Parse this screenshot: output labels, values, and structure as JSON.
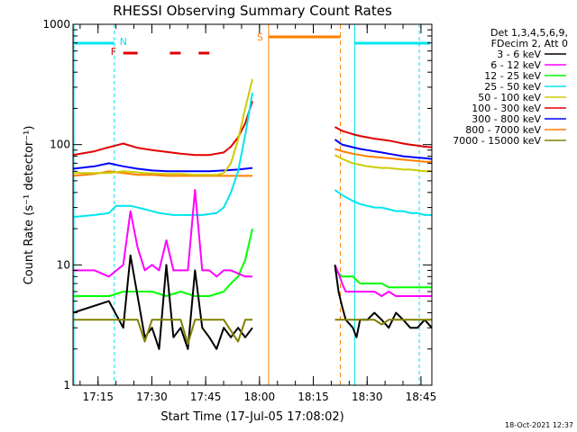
{
  "chart_data": {
    "type": "line",
    "title": "RHESSI Observing Summary Count Rates",
    "xlabel": "Start Time (17-Jul-05 17:08:02)",
    "ylabel": "Count Rate (s⁻¹ detector⁻¹)",
    "yscale": "log",
    "ylim": [
      1,
      1000
    ],
    "xlim_minutes": [
      0,
      100
    ],
    "x_ticks": [
      {
        "label": "17:15",
        "minute": 6.97
      },
      {
        "label": "17:30",
        "minute": 21.97
      },
      {
        "label": "17:45",
        "minute": 36.97
      },
      {
        "label": "18:00",
        "minute": 51.97
      },
      {
        "label": "18:15",
        "minute": 66.97
      },
      {
        "label": "18:30",
        "minute": 81.97
      },
      {
        "label": "18:45",
        "minute": 96.97
      }
    ],
    "y_ticks": [
      {
        "label": "1",
        "value": 1
      },
      {
        "label": "10",
        "value": 10
      },
      {
        "label": "100",
        "value": 100
      },
      {
        "label": "1000",
        "value": 1000
      }
    ],
    "legend_header": [
      "Det 1,3,4,5,6,9,",
      "FDecim 2, Att 0"
    ],
    "timestamp": "18-Oct-2021 12:37",
    "markers": {
      "N": {
        "label": "N",
        "color": "#00e5ee",
        "start": 0,
        "end": 11.5,
        "start2": 78.5,
        "end2": 100
      },
      "F": {
        "label": "F",
        "color": "#e00000"
      },
      "S": {
        "label": "S",
        "color": "#ff7f00",
        "start": 54.5,
        "end": 74.5
      }
    },
    "series": [
      {
        "name": "3 - 6 keV",
        "color": "#000000",
        "segments": [
          {
            "x": [
              0,
              10,
              14,
              16,
              20,
              22,
              24,
              26,
              28,
              30,
              32,
              34,
              36,
              38,
              40,
              42,
              44,
              46,
              48,
              50
            ],
            "y": [
              4,
              5,
              3,
              12,
              2.5,
              3,
              2,
              10,
              2.5,
              3,
              2,
              9,
              3,
              2.5,
              2,
              3,
              2.5,
              3,
              2.5,
              3
            ]
          },
          {
            "x": [
              73,
              74,
              75,
              76,
              78,
              79,
              80,
              82,
              84,
              86,
              88,
              90,
              92,
              94,
              96,
              98,
              100
            ],
            "y": [
              10,
              6,
              4.5,
              3.5,
              3,
              2.5,
              3.5,
              3.5,
              4,
              3.5,
              3,
              4,
              3.5,
              3,
              3,
              3.5,
              3
            ]
          }
        ]
      },
      {
        "name": "6 - 12 keV",
        "color": "#ff00ff",
        "segments": [
          {
            "x": [
              0,
              6,
              10,
              14,
              16,
              18,
              20,
              22,
              24,
              26,
              28,
              30,
              32,
              34,
              36,
              38,
              40,
              42,
              44,
              46,
              48,
              50
            ],
            "y": [
              9,
              9,
              8,
              10,
              28,
              14,
              9,
              10,
              9,
              16,
              9,
              9,
              9,
              42,
              9,
              9,
              8,
              9,
              9,
              8.5,
              8,
              8
            ]
          },
          {
            "x": [
              73,
              74,
              75,
              76,
              78,
              80,
              82,
              84,
              86,
              88,
              90,
              92,
              94,
              96,
              98,
              100
            ],
            "y": [
              10,
              8.5,
              7,
              6,
              6,
              6,
              6,
              6,
              5.5,
              6,
              5.5,
              5.5,
              5.5,
              5.5,
              5.5,
              5.5
            ]
          }
        ]
      },
      {
        "name": "12 - 25 keV",
        "color": "#00ff00",
        "segments": [
          {
            "x": [
              0,
              10,
              14,
              18,
              22,
              26,
              30,
              34,
              38,
              42,
              44,
              46,
              48,
              50
            ],
            "y": [
              5.5,
              5.5,
              6,
              6,
              6,
              5.5,
              6,
              5.5,
              5.5,
              6,
              7,
              8,
              11,
              20
            ]
          },
          {
            "x": [
              73,
              75,
              78,
              80,
              82,
              84,
              86,
              88,
              90,
              92,
              94,
              96,
              98,
              100
            ],
            "y": [
              9,
              8,
              8,
              7,
              7,
              7,
              7,
              6.5,
              6.5,
              6.5,
              6.5,
              6.5,
              6.5,
              6.5
            ]
          }
        ]
      },
      {
        "name": "25 - 50 keV",
        "color": "#00e5ee",
        "segments": [
          {
            "x": [
              0,
              6,
              10,
              12,
              16,
              20,
              24,
              28,
              32,
              36,
              40,
              42,
              44,
              46,
              48,
              50
            ],
            "y": [
              25,
              26,
              27,
              31,
              31,
              29,
              27,
              26,
              26,
              26,
              27,
              30,
              40,
              60,
              120,
              270
            ]
          },
          {
            "x": [
              73,
              75,
              78,
              80,
              82,
              84,
              86,
              88,
              90,
              92,
              94,
              96,
              98,
              100
            ],
            "y": [
              42,
              38,
              34,
              32,
              31,
              30,
              30,
              29,
              28,
              28,
              27,
              27,
              26,
              26
            ]
          }
        ]
      },
      {
        "name": "50 - 100 keV",
        "color": "#cccc00",
        "segments": [
          {
            "x": [
              0,
              10,
              14,
              20,
              26,
              30,
              34,
              38,
              40,
              42,
              44,
              46,
              48,
              50
            ],
            "y": [
              58,
              58,
              60,
              58,
              57,
              57,
              56,
              56,
              56,
              58,
              70,
              110,
              200,
              350
            ]
          },
          {
            "x": [
              73,
              75,
              78,
              80,
              82,
              84,
              86,
              88,
              90,
              92,
              94,
              96,
              98,
              100
            ],
            "y": [
              82,
              76,
              70,
              68,
              66,
              65,
              64,
              64,
              63,
              62,
              62,
              61,
              60,
              60
            ]
          }
        ]
      },
      {
        "name": "100 - 300 keV",
        "color": "#e00000",
        "segments": [
          {
            "x": [
              0,
              6,
              10,
              14,
              18,
              22,
              26,
              30,
              34,
              38,
              42,
              44,
              46,
              48,
              50
            ],
            "y": [
              82,
              88,
              95,
              102,
              94,
              90,
              87,
              84,
              82,
              82,
              86,
              96,
              115,
              150,
              230
            ]
          },
          {
            "x": [
              73,
              75,
              78,
              80,
              82,
              84,
              86,
              88,
              90,
              92,
              94,
              96,
              98,
              100
            ],
            "y": [
              140,
              130,
              122,
              118,
              115,
              112,
              110,
              108,
              105,
              102,
              100,
              98,
              96,
              95
            ]
          }
        ]
      },
      {
        "name": "300 - 800 keV",
        "color": "#0000ff",
        "segments": [
          {
            "x": [
              0,
              6,
              10,
              14,
              18,
              22,
              26,
              30,
              34,
              38,
              42,
              46,
              50
            ],
            "y": [
              63,
              66,
              70,
              66,
              63,
              61,
              60,
              60,
              60,
              60,
              61,
              62,
              64
            ]
          },
          {
            "x": [
              73,
              75,
              78,
              80,
              82,
              84,
              86,
              88,
              90,
              92,
              94,
              96,
              98,
              100
            ],
            "y": [
              110,
              100,
              95,
              92,
              90,
              88,
              86,
              84,
              82,
              80,
              79,
              78,
              77,
              76
            ]
          }
        ]
      },
      {
        "name": "800 - 7000 keV",
        "color": "#ff7f00",
        "segments": [
          {
            "x": [
              0,
              6,
              10,
              14,
              18,
              22,
              26,
              30,
              34,
              38,
              42,
              46,
              50
            ],
            "y": [
              55,
              57,
              60,
              58,
              56,
              56,
              55,
              55,
              55,
              55,
              55,
              55,
              55
            ]
          },
          {
            "x": [
              73,
              75,
              78,
              80,
              82,
              84,
              86,
              88,
              90,
              92,
              94,
              96,
              98,
              100
            ],
            "y": [
              92,
              88,
              84,
              82,
              80,
              79,
              78,
              77,
              76,
              75,
              74,
              73,
              72,
              72
            ]
          }
        ]
      },
      {
        "name": "7000 - 15000 keV",
        "color": "#808000",
        "segments": [
          {
            "x": [
              0,
              6,
              10,
              14,
              18,
              20,
              22,
              26,
              30,
              32,
              34,
              38,
              42,
              46,
              48,
              50
            ],
            "y": [
              3.5,
              3.5,
              3.5,
              3.5,
              3.5,
              2.3,
              3.5,
              3.5,
              3.5,
              2.2,
              3.5,
              3.5,
              3.5,
              2.3,
              3.5,
              3.5
            ]
          },
          {
            "x": [
              73,
              75,
              78,
              80,
              82,
              84,
              86,
              88,
              90,
              92,
              94,
              96,
              98,
              100
            ],
            "y": [
              3.5,
              3.5,
              3.5,
              3.5,
              3.5,
              3.5,
              3.2,
              3.5,
              3.5,
              3.5,
              3.5,
              3.5,
              3.5,
              3.5
            ]
          }
        ]
      }
    ]
  }
}
